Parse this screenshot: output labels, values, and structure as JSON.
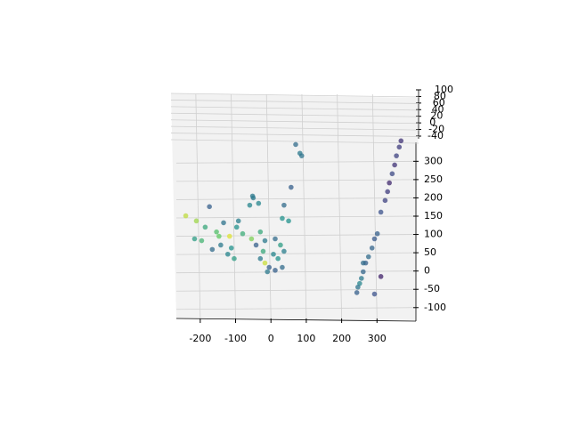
{
  "chart_data": {
    "type": "scatter3d",
    "x": [
      368,
      363,
      355,
      350,
      343,
      335,
      330,
      323,
      311,
      301,
      293,
      286,
      276,
      268,
      261,
      256,
      251,
      246,
      243,
      293,
      311,
      261,
      -241,
      -211,
      -174,
      -186,
      -154,
      -216,
      -142,
      -117,
      -97,
      -80,
      -166,
      -122,
      -55,
      -42,
      -92,
      -60,
      -50,
      -104,
      -196,
      -147,
      -134,
      -112,
      -30,
      -17,
      12,
      27,
      37,
      32,
      -30,
      -17,
      -5,
      7,
      20,
      32,
      -22,
      -10,
      12,
      37,
      70,
      82,
      87,
      57,
      -52,
      -35,
      50
    ],
    "y": [
      356,
      339,
      315,
      290,
      266,
      241,
      217,
      193,
      161,
      102,
      88,
      63,
      39,
      22,
      -2,
      -20,
      -34,
      -44,
      -59,
      -63,
      -15,
      22,
      151,
      137,
      176,
      120,
      107,
      88,
      71,
      95,
      120,
      102,
      59,
      46,
      88,
      71,
      137,
      180,
      200,
      34,
      83,
      95,
      132,
      63,
      107,
      83,
      88,
      71,
      180,
      144,
      34,
      22,
      10,
      46,
      34,
      10,
      54,
      -2,
      2,
      54,
      346,
      322,
      315,
      229,
      205,
      185,
      137
    ],
    "c": [
      0.15,
      0.18,
      0.2,
      0.15,
      0.22,
      0.12,
      0.18,
      0.2,
      0.25,
      0.3,
      0.28,
      0.32,
      0.35,
      0.3,
      0.33,
      0.4,
      0.45,
      0.38,
      0.3,
      0.25,
      0.1,
      0.35,
      0.9,
      0.85,
      0.3,
      0.6,
      0.7,
      0.55,
      0.4,
      0.95,
      0.5,
      0.62,
      0.35,
      0.45,
      0.8,
      0.3,
      0.42,
      0.45,
      0.4,
      0.55,
      0.65,
      0.75,
      0.38,
      0.5,
      0.6,
      0.4,
      0.35,
      0.55,
      0.35,
      0.5,
      0.4,
      0.92,
      0.3,
      0.45,
      0.5,
      0.35,
      0.6,
      0.4,
      0.3,
      0.42,
      0.35,
      0.4,
      0.38,
      0.3,
      0.4,
      0.45,
      0.5
    ],
    "colormap": "viridis",
    "xlim": [
      -250,
      390
    ],
    "ylim": [
      -120,
      330
    ],
    "zlim": [
      -40,
      100
    ],
    "xticks": [
      -200,
      -100,
      0,
      100,
      200,
      300
    ],
    "yticks": [
      -100,
      -50,
      0,
      50,
      100,
      150,
      200,
      250,
      300
    ],
    "zticks": [
      -40,
      -20,
      0,
      20,
      40,
      60,
      80,
      100
    ],
    "grid": true
  }
}
